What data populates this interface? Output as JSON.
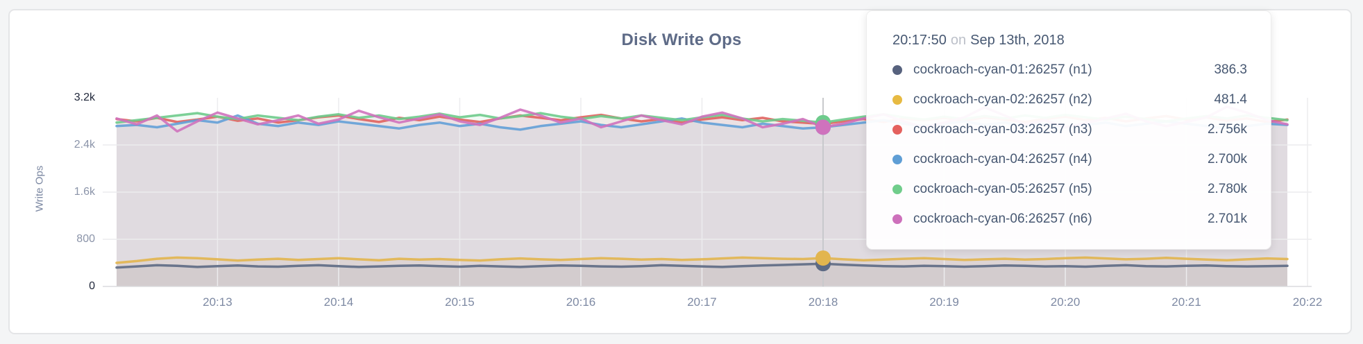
{
  "card": {
    "background": "#ffffff",
    "border_color": "#e4e5e7",
    "page_background": "#f4f5f6"
  },
  "chart_data": {
    "type": "area",
    "title": "Disk Write Ops",
    "ylabel": "Write Ops",
    "xlabel": "",
    "ylim": [
      0,
      3200
    ],
    "grid": true,
    "legend_position": "tooltip-overlay",
    "y_ticks": [
      {
        "value": 0,
        "label": "0"
      },
      {
        "value": 800,
        "label": "800"
      },
      {
        "value": 1600,
        "label": "1.6k"
      },
      {
        "value": 2400,
        "label": "2.4k"
      },
      {
        "value": 3200,
        "label": "3.2k"
      }
    ],
    "x_tick_labels": [
      "20:13",
      "20:14",
      "20:15",
      "20:16",
      "20:17",
      "20:18",
      "20:19",
      "20:20",
      "20:21",
      "20:22"
    ],
    "x_start_time": "20:12:10",
    "x_interval_seconds": 10,
    "highlight_index": 35,
    "highlight_time": "20:17:50",
    "series": [
      {
        "name": "cockroach-cyan-01:26257 (n1)",
        "color": "#5d6a84",
        "values": [
          320,
          340,
          360,
          350,
          330,
          345,
          355,
          340,
          335,
          350,
          360,
          345,
          330,
          340,
          350,
          355,
          345,
          335,
          350,
          340,
          330,
          345,
          355,
          350,
          340,
          335,
          345,
          360,
          350,
          340,
          330,
          345,
          355,
          365,
          375,
          386.3,
          370,
          355,
          345,
          340,
          350,
          345,
          335,
          345,
          355,
          350,
          340,
          345,
          335,
          350,
          360,
          345,
          340,
          350,
          355,
          345,
          340,
          345,
          350
        ]
      },
      {
        "name": "cockroach-cyan-02:26257 (n2)",
        "color": "#e2b54e",
        "values": [
          400,
          430,
          470,
          490,
          480,
          460,
          440,
          455,
          470,
          450,
          465,
          480,
          460,
          445,
          470,
          455,
          465,
          450,
          440,
          460,
          475,
          460,
          450,
          465,
          480,
          470,
          455,
          465,
          450,
          460,
          475,
          490,
          480,
          470,
          465,
          481.4,
          460,
          445,
          455,
          470,
          480,
          465,
          450,
          460,
          470,
          455,
          465,
          480,
          490,
          475,
          460,
          470,
          485,
          470,
          455,
          445,
          460,
          475,
          465
        ]
      },
      {
        "name": "cockroach-cyan-03:26257 (n3)",
        "color": "#e0625e",
        "values": [
          2840,
          2800,
          2860,
          2790,
          2830,
          2880,
          2810,
          2850,
          2780,
          2820,
          2870,
          2900,
          2840,
          2790,
          2860,
          2820,
          2880,
          2830,
          2790,
          2850,
          2900,
          2860,
          2820,
          2870,
          2910,
          2850,
          2800,
          2840,
          2780,
          2830,
          2870,
          2820,
          2860,
          2800,
          2780,
          2756,
          2800,
          2840,
          2790,
          2850,
          2820,
          2860,
          2810,
          2870,
          2830,
          2790,
          2840,
          2880,
          2820,
          2860,
          2800,
          2850,
          2890,
          2830,
          2870,
          2810,
          2850,
          2790,
          2830
        ]
      },
      {
        "name": "cockroach-cyan-04:26257 (n4)",
        "color": "#64a0d7",
        "values": [
          2720,
          2740,
          2700,
          2760,
          2820,
          2780,
          2900,
          2760,
          2720,
          2780,
          2740,
          2800,
          2760,
          2720,
          2680,
          2740,
          2780,
          2720,
          2760,
          2700,
          2660,
          2720,
          2760,
          2800,
          2740,
          2700,
          2750,
          2800,
          2850,
          2780,
          2740,
          2700,
          2760,
          2720,
          2680,
          2700,
          2740,
          2780,
          2820,
          2760,
          2720,
          2760,
          2800,
          2740,
          2780,
          2720,
          2760,
          2700,
          2740,
          2780,
          2720,
          2760,
          2800,
          2760,
          2720,
          2680,
          2720,
          2760,
          2740
        ]
      },
      {
        "name": "cockroach-cyan-05:26257 (n5)",
        "color": "#6ecb8c",
        "values": [
          2780,
          2820,
          2860,
          2900,
          2940,
          2880,
          2840,
          2900,
          2860,
          2820,
          2880,
          2920,
          2860,
          2900,
          2840,
          2880,
          2930,
          2870,
          2910,
          2850,
          2890,
          2940,
          2880,
          2840,
          2890,
          2850,
          2900,
          2860,
          2820,
          2870,
          2910,
          2850,
          2800,
          2840,
          2810,
          2780,
          2830,
          2880,
          2920,
          2870,
          2830,
          2880,
          2840,
          2890,
          2850,
          2900,
          2860,
          2910,
          2870,
          2830,
          2880,
          2840,
          2800,
          2850,
          2890,
          2850,
          2900,
          2860,
          2820
        ]
      },
      {
        "name": "cockroach-cyan-06:26257 (n6)",
        "color": "#cf72bd",
        "values": [
          2850,
          2750,
          2900,
          2630,
          2800,
          2950,
          2850,
          2750,
          2820,
          2900,
          2760,
          2830,
          2980,
          2870,
          2780,
          2850,
          2920,
          2800,
          2740,
          2860,
          3000,
          2900,
          2780,
          2850,
          2700,
          2800,
          2900,
          2820,
          2750,
          2880,
          2950,
          2850,
          2700,
          2760,
          2840,
          2701,
          2760,
          2850,
          2920,
          2800,
          2700,
          2780,
          2870,
          3040,
          2900,
          2750,
          2820,
          2700,
          2770,
          2850,
          2930,
          2800,
          2720,
          2790,
          2870,
          3050,
          2950,
          2820,
          2750
        ]
      }
    ]
  },
  "tooltip": {
    "time": "20:17:50",
    "separator": "on",
    "date": "Sep 13th, 2018",
    "rows": [
      {
        "label": "cockroach-cyan-01:26257 (n1)",
        "value": "386.3",
        "color": "#57627e"
      },
      {
        "label": "cockroach-cyan-02:26257 (n2)",
        "value": "481.4",
        "color": "#e7ba42"
      },
      {
        "label": "cockroach-cyan-03:26257 (n3)",
        "value": "2.756k",
        "color": "#e4615e"
      },
      {
        "label": "cockroach-cyan-04:26257 (n4)",
        "value": "2.700k",
        "color": "#5f9ed5"
      },
      {
        "label": "cockroach-cyan-05:26257 (n5)",
        "value": "2.780k",
        "color": "#70cd8b"
      },
      {
        "label": "cockroach-cyan-06:26257 (n6)",
        "value": "2.701k",
        "color": "#cd70bb"
      }
    ]
  }
}
